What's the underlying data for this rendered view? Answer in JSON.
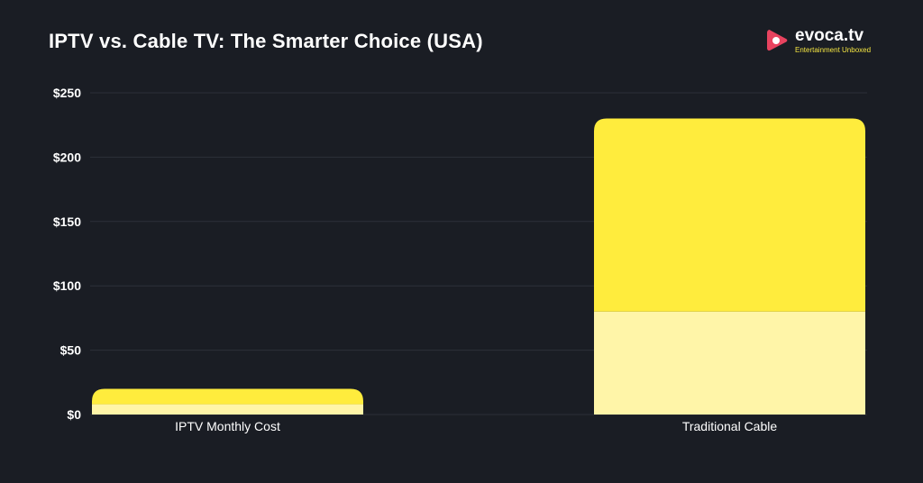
{
  "brand": {
    "name": "evoca.tv",
    "tagline": "Entertainment Unboxed",
    "logo_icon": "play-icon",
    "logo_color": "#e8435f"
  },
  "colors": {
    "background": "#1a1d24",
    "series_top": "#ffec3d",
    "series_bottom": "#fff5a8",
    "grid": "#2c3039",
    "text": "#ffffff"
  },
  "chart_data": {
    "type": "bar",
    "stacked": true,
    "title": "IPTV vs. Cable TV: The Smarter Choice (USA)",
    "categories": [
      "IPTV Monthly Cost",
      "Traditional Cable"
    ],
    "series": [
      {
        "values": [
          8,
          80
        ],
        "color": "#fff5a8"
      },
      {
        "values": [
          12,
          150
        ],
        "color": "#ffec3d"
      }
    ],
    "ylim": [
      0,
      250
    ],
    "yticks": [
      0,
      50,
      100,
      150,
      200,
      250
    ],
    "ytick_labels": [
      "$0",
      "$50",
      "$100",
      "$150",
      "$200",
      "$250"
    ],
    "grid": true,
    "legend": "none"
  }
}
